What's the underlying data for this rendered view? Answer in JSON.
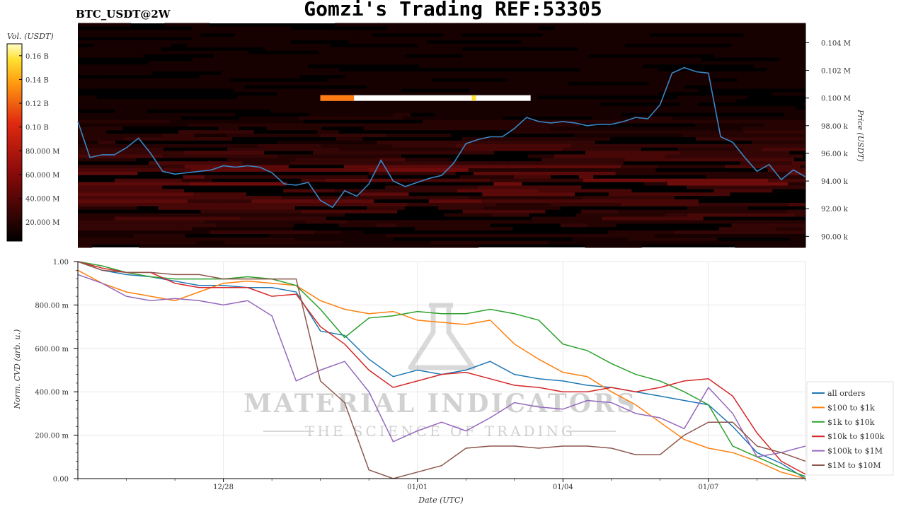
{
  "header": {
    "title": "Gomzi's Trading REF:53305",
    "pair": "BTC_USDT@2W"
  },
  "watermark": {
    "brand": "MATERIAL INDICATORS",
    "tagline": "THE SCIENCE OF TRADING"
  },
  "colors": {
    "background": "#000000",
    "price_line": "#3a86c4",
    "heat_low": "#5a0a0a",
    "heat_high": "#ffffff"
  },
  "chart_data": [
    {
      "type": "heatmap",
      "title": "Gomzi's Trading REF:53305",
      "subtitle": "BTC_USDT@2W",
      "ylabel": "Price (USDT)",
      "colorbar_label": "Vol. (USDT)",
      "colorbar_ticks": [
        "20.000 M",
        "40.000 M",
        "60.000 M",
        "80.000 M",
        "0.10 B",
        "0.12 B",
        "0.14 B",
        "0.16 B"
      ],
      "colorbar_values": [
        20,
        40,
        60,
        80,
        100,
        120,
        140,
        160
      ],
      "colorbar_range": [
        4,
        170
      ],
      "y_ticks": [
        "90.00 k",
        "92.00 k",
        "94.00 k",
        "96.00 k",
        "98.00 k",
        "0.100 M",
        "0.102 M",
        "0.104 M"
      ],
      "y_tick_values": [
        90000,
        92000,
        94000,
        96000,
        98000,
        100000,
        102000,
        104000
      ],
      "ylim": [
        89200,
        105400
      ],
      "x_range": [
        "2024-12-25",
        "2025-01-09"
      ],
      "price_series": {
        "x": [
          "2024-12-25T00:00",
          "2024-12-25T06:00",
          "2024-12-25T12:00",
          "2024-12-25T18:00",
          "2024-12-26T00:00",
          "2024-12-26T06:00",
          "2024-12-26T12:00",
          "2024-12-26T18:00",
          "2024-12-27T00:00",
          "2024-12-27T06:00",
          "2024-12-27T12:00",
          "2024-12-27T18:00",
          "2024-12-28T00:00",
          "2024-12-28T06:00",
          "2024-12-28T12:00",
          "2024-12-28T18:00",
          "2024-12-29T00:00",
          "2024-12-29T06:00",
          "2024-12-29T12:00",
          "2024-12-29T18:00",
          "2024-12-30T00:00",
          "2024-12-30T06:00",
          "2024-12-30T12:00",
          "2024-12-30T18:00",
          "2024-12-31T00:00",
          "2024-12-31T06:00",
          "2024-12-31T12:00",
          "2024-12-31T18:00",
          "2025-01-01T00:00",
          "2025-01-01T06:00",
          "2025-01-01T12:00",
          "2025-01-01T18:00",
          "2025-01-02T00:00",
          "2025-01-02T06:00",
          "2025-01-02T12:00",
          "2025-01-02T18:00",
          "2025-01-03T00:00",
          "2025-01-03T06:00",
          "2025-01-03T12:00",
          "2025-01-03T18:00",
          "2025-01-04T00:00",
          "2025-01-04T06:00",
          "2025-01-04T12:00",
          "2025-01-04T18:00",
          "2025-01-05T00:00",
          "2025-01-05T06:00",
          "2025-01-05T12:00",
          "2025-01-05T18:00",
          "2025-01-06T00:00",
          "2025-01-06T06:00",
          "2025-01-06T12:00",
          "2025-01-06T18:00",
          "2025-01-07T00:00",
          "2025-01-07T06:00",
          "2025-01-07T12:00",
          "2025-01-07T18:00",
          "2025-01-08T00:00",
          "2025-01-08T06:00",
          "2025-01-08T12:00",
          "2025-01-08T18:00",
          "2025-01-09T00:00"
        ],
        "values": [
          98300,
          95700,
          95900,
          95900,
          96400,
          97100,
          96000,
          94700,
          94500,
          94600,
          94700,
          94800,
          95100,
          95000,
          95100,
          95000,
          94600,
          93800,
          93700,
          93900,
          92600,
          92100,
          93300,
          92900,
          93800,
          95500,
          94000,
          93600,
          93900,
          94200,
          94400,
          95300,
          96700,
          97000,
          97200,
          97200,
          97800,
          98600,
          98300,
          98200,
          98300,
          98200,
          98000,
          98100,
          98100,
          98300,
          98600,
          98500,
          99500,
          101800,
          102200,
          101900,
          101800,
          97200,
          96800,
          95700,
          94700,
          95200,
          94100,
          94800,
          94300
        ],
        "ylabel": "Price (USDT)"
      },
      "bright_band": {
        "price": 100000,
        "x_start": "2024-12-30T00:00",
        "x_end": "2025-01-03T08:00",
        "value_b": 0.17
      },
      "grid": false
    },
    {
      "type": "line",
      "xlabel": "Date (UTC)",
      "ylabel": "Norm. CVD (arb. u.)",
      "x_ticks": [
        "12/28",
        "01/01",
        "01/04",
        "01/07"
      ],
      "x_tick_dates": [
        "2024-12-28",
        "2025-01-01",
        "2025-01-04",
        "2025-01-07"
      ],
      "y_ticks": [
        "0.00",
        "200.00 m",
        "400.00 m",
        "600.00 m",
        "800.00 m",
        "1.00"
      ],
      "y_tick_values": [
        0,
        0.2,
        0.4,
        0.6,
        0.8,
        1.0
      ],
      "ylim": [
        0,
        1.0
      ],
      "x_range": [
        "2024-12-25",
        "2025-01-09"
      ],
      "grid": true,
      "legend_position": "right",
      "x": [
        "2024-12-25T00:00",
        "2024-12-25T12:00",
        "2024-12-26T00:00",
        "2024-12-26T12:00",
        "2024-12-27T00:00",
        "2024-12-27T12:00",
        "2024-12-28T00:00",
        "2024-12-28T12:00",
        "2024-12-29T00:00",
        "2024-12-29T12:00",
        "2024-12-30T00:00",
        "2024-12-30T12:00",
        "2024-12-31T00:00",
        "2024-12-31T12:00",
        "2025-01-01T00:00",
        "2025-01-01T12:00",
        "2025-01-02T00:00",
        "2025-01-02T12:00",
        "2025-01-03T00:00",
        "2025-01-03T12:00",
        "2025-01-04T00:00",
        "2025-01-04T12:00",
        "2025-01-05T00:00",
        "2025-01-05T12:00",
        "2025-01-06T00:00",
        "2025-01-06T12:00",
        "2025-01-07T00:00",
        "2025-01-07T12:00",
        "2025-01-08T00:00",
        "2025-01-08T12:00",
        "2025-01-09T00:00"
      ],
      "series": [
        {
          "name": "all orders",
          "color": "#1f77b4",
          "values": [
            1.0,
            0.96,
            0.94,
            0.93,
            0.91,
            0.89,
            0.89,
            0.88,
            0.88,
            0.86,
            0.68,
            0.66,
            0.55,
            0.47,
            0.5,
            0.48,
            0.5,
            0.54,
            0.48,
            0.46,
            0.45,
            0.43,
            0.42,
            0.4,
            0.38,
            0.36,
            0.34,
            0.24,
            0.12,
            0.07,
            0.0
          ]
        },
        {
          "name": "$100 to $1k",
          "color": "#ff7f0e",
          "values": [
            0.96,
            0.9,
            0.86,
            0.84,
            0.82,
            0.86,
            0.9,
            0.91,
            0.9,
            0.89,
            0.82,
            0.78,
            0.76,
            0.77,
            0.73,
            0.72,
            0.71,
            0.73,
            0.62,
            0.55,
            0.49,
            0.47,
            0.4,
            0.34,
            0.26,
            0.18,
            0.14,
            0.12,
            0.08,
            0.03,
            0.0
          ]
        },
        {
          "name": "$1k to $10k",
          "color": "#2ca02c",
          "values": [
            1.0,
            0.98,
            0.95,
            0.93,
            0.92,
            0.92,
            0.92,
            0.93,
            0.92,
            0.89,
            0.78,
            0.65,
            0.74,
            0.75,
            0.77,
            0.76,
            0.76,
            0.78,
            0.76,
            0.73,
            0.62,
            0.59,
            0.53,
            0.48,
            0.45,
            0.4,
            0.34,
            0.15,
            0.1,
            0.05,
            0.01
          ]
        },
        {
          "name": "$10k to $100k",
          "color": "#d62728",
          "values": [
            1.0,
            0.97,
            0.95,
            0.95,
            0.9,
            0.88,
            0.88,
            0.88,
            0.84,
            0.85,
            0.7,
            0.62,
            0.5,
            0.42,
            0.45,
            0.48,
            0.49,
            0.46,
            0.43,
            0.42,
            0.4,
            0.4,
            0.42,
            0.4,
            0.42,
            0.45,
            0.46,
            0.38,
            0.21,
            0.08,
            0.02
          ]
        },
        {
          "name": "$100k to $1M",
          "color": "#9467bd",
          "values": [
            0.94,
            0.9,
            0.84,
            0.82,
            0.83,
            0.82,
            0.8,
            0.82,
            0.75,
            0.45,
            0.5,
            0.54,
            0.4,
            0.17,
            0.22,
            0.26,
            0.22,
            0.28,
            0.35,
            0.33,
            0.32,
            0.36,
            0.35,
            0.3,
            0.28,
            0.23,
            0.42,
            0.3,
            0.1,
            0.12,
            0.15
          ]
        },
        {
          "name": "$1M to $10M",
          "color": "#8c564b",
          "values": [
            1.0,
            0.96,
            0.95,
            0.95,
            0.94,
            0.94,
            0.92,
            0.92,
            0.92,
            0.92,
            0.45,
            0.35,
            0.04,
            0.0,
            0.03,
            0.06,
            0.14,
            0.15,
            0.15,
            0.14,
            0.15,
            0.15,
            0.14,
            0.11,
            0.11,
            0.2,
            0.26,
            0.26,
            0.15,
            0.12,
            0.08
          ]
        }
      ]
    }
  ]
}
